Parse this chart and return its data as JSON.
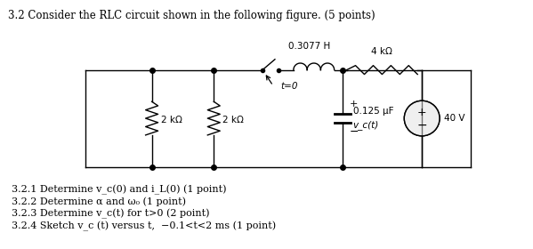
{
  "title": "3.2 Consider the RLC circuit shown in the following figure. (5 points)",
  "background": "#ffffff",
  "circuit": {
    "inductor_label": "0.3077 H",
    "resistor_right_label": "4 kΩ",
    "resistor_left1_label": "2 kΩ",
    "resistor_left2_label": "2 kΩ",
    "capacitor_label": "0.125 μF",
    "switch_label": "t=0",
    "voltage_label": "40 V",
    "vc_label": "v_c(t)"
  },
  "subquestions": [
    "3.2.1 Determine v_c(0) and i_L(0) (1 point)",
    "3.2.2 Determine α and ω₀ (1 point)",
    "3.2.3 Determine v_c(t) for t>0 (2 point)",
    "3.2.4 Sketch v_c (t) versus t,  −0.1<t<2 ms (1 point)"
  ]
}
